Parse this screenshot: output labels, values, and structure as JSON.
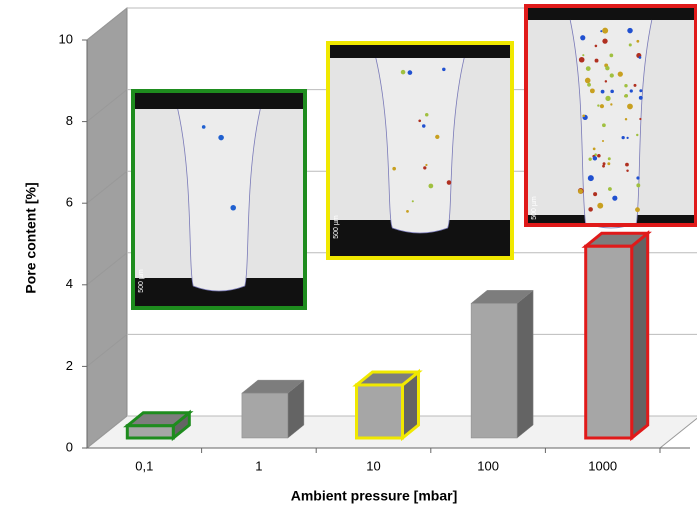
{
  "chart_data": {
    "type": "bar3d",
    "categories": [
      "0,1",
      "1",
      "10",
      "100",
      "1000"
    ],
    "values": [
      0.3,
      1.1,
      1.3,
      3.3,
      4.7
    ],
    "color": "#a6a6a6",
    "edge_colors": [
      "#1e8c1e",
      null,
      "#f0e800",
      null,
      "#e01a1a"
    ],
    "ylim": [
      0,
      10
    ],
    "yticks": [
      0,
      2,
      4,
      6,
      8,
      10
    ],
    "grid": true,
    "y_label": "Pore content [%]",
    "x_label": "Ambient pressure [mbar]",
    "insets": [
      {
        "scale_label": "500 µm",
        "border": "#1e8c1e"
      },
      {
        "scale_label": "500 µm",
        "border": "#f0e800"
      },
      {
        "scale_label": "500 µm",
        "border": "#e01a1a"
      }
    ]
  }
}
